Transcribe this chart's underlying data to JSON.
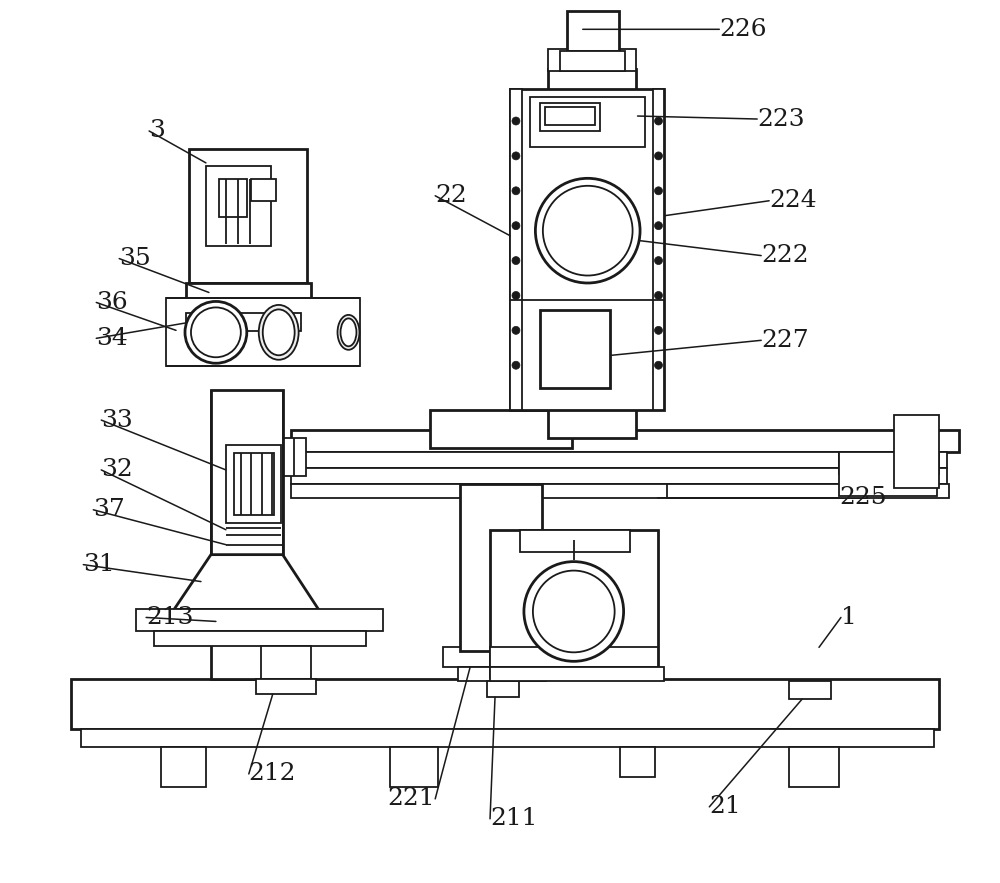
{
  "bg_color": "#ffffff",
  "lc": "#1a1a1a",
  "lw": 1.3,
  "lw2": 2.0,
  "fs": 18,
  "fig_w": 10.0,
  "fig_h": 8.83
}
